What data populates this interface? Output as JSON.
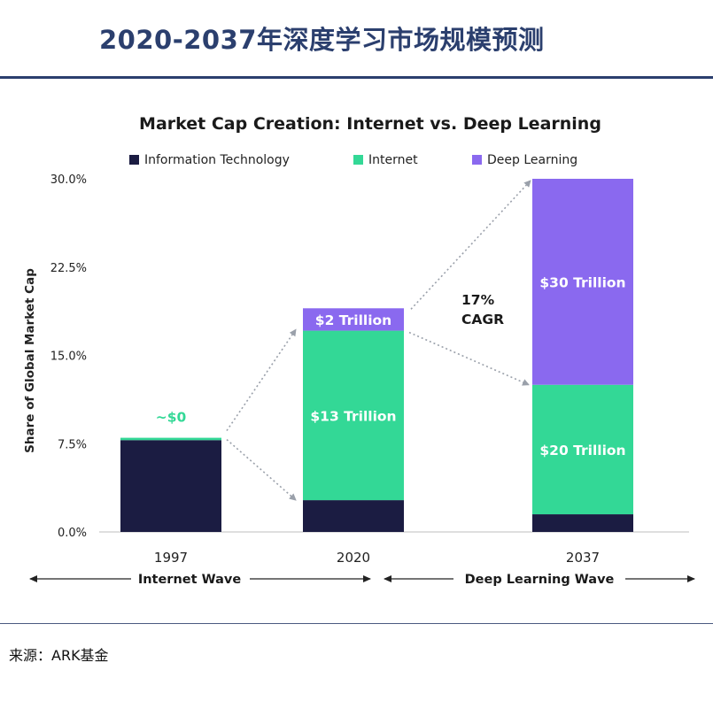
{
  "page_title": "2020-2037年深度学习市场规模预测",
  "source": "来源：ARK基金",
  "colors": {
    "title": "#2b3f6e",
    "info_tech": "#1b1c42",
    "internet": "#33d896",
    "deep_learning": "#8a69ef",
    "arrow": "#9aa0aa",
    "axis_text": "#222222"
  },
  "chart_data": {
    "type": "bar",
    "stacked": true,
    "title": "Market Cap Creation: Internet vs. Deep Learning",
    "ylabel": "Share of Global Market Cap",
    "xlabel": "",
    "ylim": [
      0,
      30
    ],
    "yticks": [
      "0.0%",
      "7.5%",
      "15.0%",
      "22.5%",
      "30.0%"
    ],
    "ytick_values": [
      0,
      7.5,
      15,
      22.5,
      30
    ],
    "categories": [
      "1997",
      "2020",
      "2037"
    ],
    "series": [
      {
        "name": "Information Technology",
        "color_key": "info_tech",
        "values": [
          7.8,
          2.7,
          1.5
        ]
      },
      {
        "name": "Internet",
        "color_key": "internet",
        "values": [
          0.2,
          14.4,
          11.0
        ]
      },
      {
        "name": "Deep Learning",
        "color_key": "deep_learning",
        "values": [
          0,
          1.9,
          17.5
        ]
      }
    ],
    "data_labels": [
      {
        "category": "1997",
        "series": "Internet",
        "text": "~$0",
        "position": "above",
        "color_key": "internet"
      },
      {
        "category": "2020",
        "series": "Internet",
        "text": "$13 Trillion",
        "position": "inside",
        "color_key": "white"
      },
      {
        "category": "2020",
        "series": "Deep Learning",
        "text": "$2 Trillion",
        "position": "inside",
        "color_key": "white"
      },
      {
        "category": "2037",
        "series": "Internet",
        "text": "$20 Trillion",
        "position": "inside",
        "color_key": "white"
      },
      {
        "category": "2037",
        "series": "Deep Learning",
        "text": "$30 Trillion",
        "position": "inside",
        "color_key": "white"
      }
    ],
    "annotations": [
      {
        "text": "17%"
      },
      {
        "text": "CAGR"
      }
    ],
    "waves": [
      {
        "label": "Internet Wave"
      },
      {
        "label": "Deep Learning Wave"
      }
    ],
    "legend_position": "top-center",
    "grid": false
  }
}
